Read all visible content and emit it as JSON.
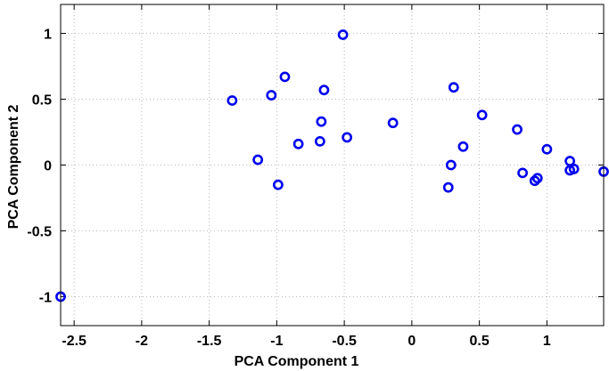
{
  "chart_data": {
    "type": "scatter",
    "title": "",
    "xlabel": "PCA Component 1",
    "ylabel": "PCA Component 2",
    "xlim": [
      -2.6,
      1.42
    ],
    "ylim": [
      -1.22,
      1.22
    ],
    "xticks": [
      -2.5,
      -2,
      -1.5,
      -1,
      -0.5,
      0,
      0.5,
      1
    ],
    "xtick_labels": [
      "-2.5",
      "-2",
      "-1.5",
      "-1",
      "-0.5",
      "0",
      "0.5",
      "1"
    ],
    "yticks": [
      -1,
      -0.5,
      0,
      0.5,
      1
    ],
    "ytick_labels": [
      "-1",
      "-0.5",
      "0",
      "0.5",
      "1"
    ],
    "grid": true,
    "marker": "open-circle",
    "series": [
      {
        "color": "#0000ee",
        "points": [
          [
            -2.6,
            -1.0
          ],
          [
            -1.33,
            0.49
          ],
          [
            -1.14,
            0.04
          ],
          [
            -1.04,
            0.53
          ],
          [
            -0.99,
            -0.15
          ],
          [
            -0.94,
            0.67
          ],
          [
            -0.84,
            0.16
          ],
          [
            -0.68,
            0.18
          ],
          [
            -0.67,
            0.33
          ],
          [
            -0.65,
            0.57
          ],
          [
            -0.51,
            0.99
          ],
          [
            -0.48,
            0.21
          ],
          [
            -0.14,
            0.32
          ],
          [
            0.27,
            -0.17
          ],
          [
            0.29,
            0.0
          ],
          [
            0.31,
            0.59
          ],
          [
            0.38,
            0.14
          ],
          [
            0.52,
            0.38
          ],
          [
            0.78,
            0.27
          ],
          [
            0.82,
            -0.06
          ],
          [
            0.91,
            -0.12
          ],
          [
            0.93,
            -0.1
          ],
          [
            1.0,
            0.12
          ],
          [
            1.17,
            0.03
          ],
          [
            1.17,
            -0.04
          ],
          [
            1.2,
            -0.03
          ],
          [
            1.42,
            -0.05
          ]
        ]
      }
    ]
  }
}
